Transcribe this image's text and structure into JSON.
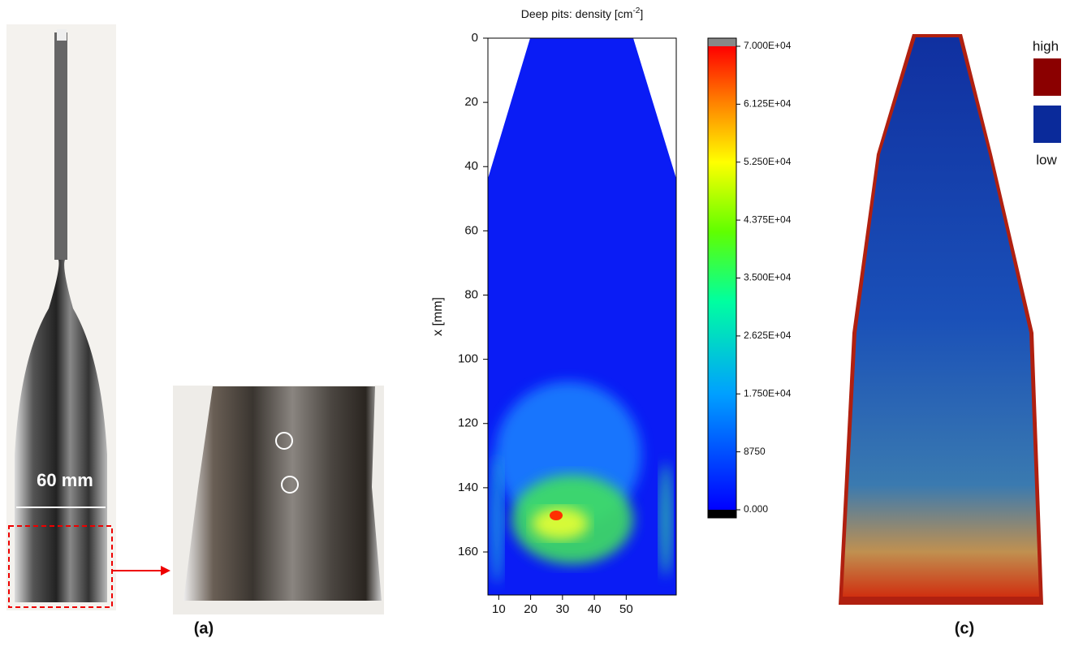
{
  "panel_a": {
    "label": "(a)",
    "scale_label": "60 mm"
  },
  "chart_data": {
    "type": "heatmap",
    "title": "Deep pits: density [cm",
    "title_superscript": "-2",
    "title_end": "]",
    "ylabel": "x [mm]",
    "ylim": [
      0,
      173.4
    ],
    "yticks": [
      0,
      20,
      40,
      60,
      80,
      100,
      120,
      140,
      160
    ],
    "xlim": [
      6.6,
      65.7
    ],
    "xticks": [
      10,
      20,
      30,
      40,
      50
    ],
    "colorbar_lim": [
      0,
      70000
    ],
    "colorbar_ticks": [
      {
        "value": 0,
        "label": "0.000"
      },
      {
        "value": 8750,
        "label": "8750"
      },
      {
        "value": 17500,
        "label": "1.750E+04"
      },
      {
        "value": 26250,
        "label": "2.625E+04"
      },
      {
        "value": 35000,
        "label": "3.500E+04"
      },
      {
        "value": 43750,
        "label": "4.375E+04"
      },
      {
        "value": 52500,
        "label": "5.250E+04"
      },
      {
        "value": 61250,
        "label": "6.125E+04"
      },
      {
        "value": 70000,
        "label": "7.000E+04"
      }
    ]
  },
  "panel_c": {
    "label": "(c)",
    "legend_high": "high",
    "legend_low": "low"
  }
}
